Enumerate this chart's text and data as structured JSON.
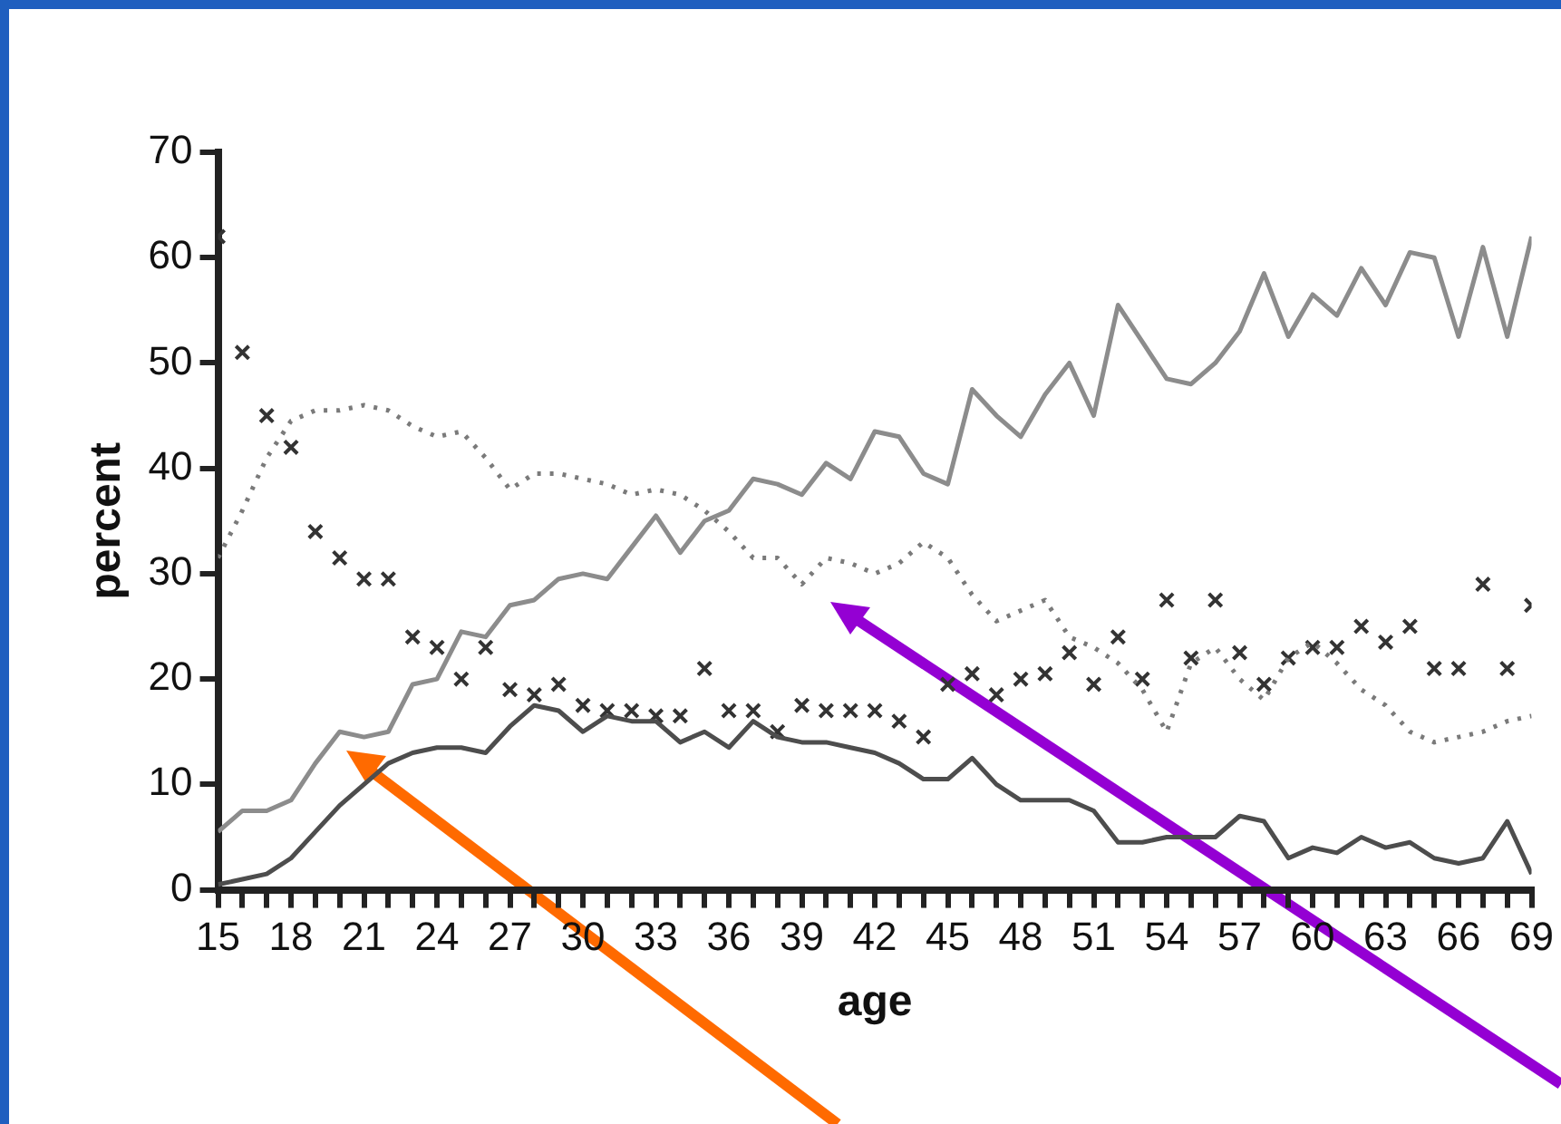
{
  "chart_data": {
    "type": "line",
    "xlabel": "age",
    "ylabel": "percent",
    "x": [
      15,
      16,
      17,
      18,
      19,
      20,
      21,
      22,
      23,
      24,
      25,
      26,
      27,
      28,
      29,
      30,
      31,
      32,
      33,
      34,
      35,
      36,
      37,
      38,
      39,
      40,
      41,
      42,
      43,
      44,
      45,
      46,
      47,
      48,
      49,
      50,
      51,
      52,
      53,
      54,
      55,
      56,
      57,
      58,
      59,
      60,
      61,
      62,
      63,
      64,
      65,
      66,
      67,
      68,
      69
    ],
    "series": [
      {
        "type": "line",
        "color": "#8c8c8c",
        "line_style": "solid",
        "marker": "none",
        "values": [
          5.5,
          7.5,
          7.5,
          8.5,
          12,
          15,
          14.5,
          15,
          19.5,
          20,
          24.5,
          24,
          27,
          27.5,
          29.5,
          30,
          29.5,
          32.5,
          35.5,
          32,
          35,
          36,
          39,
          38.5,
          37.5,
          40.5,
          39,
          43.5,
          43,
          39.5,
          38.5,
          47.5,
          45,
          43,
          47,
          50,
          45,
          55.5,
          52,
          48.5,
          48,
          50,
          53,
          58.5,
          52.5,
          56.5,
          54.5,
          59,
          55.5,
          60.5,
          60,
          52.5,
          61,
          52.5,
          62
        ]
      },
      {
        "type": "line",
        "color": "#4d4d4d",
        "line_style": "solid",
        "marker": "none",
        "values": [
          0.5,
          1,
          1.5,
          3,
          5.5,
          8,
          10,
          12,
          13,
          13.5,
          13.5,
          13,
          15.5,
          17.5,
          17,
          15,
          16.5,
          16,
          16,
          14,
          15,
          13.5,
          16,
          14.5,
          14,
          14,
          13.5,
          13,
          12,
          10.5,
          10.5,
          12.5,
          10,
          8.5,
          8.5,
          8.5,
          7.5,
          4.5,
          4.5,
          5,
          5,
          5,
          7,
          6.5,
          3,
          4,
          3.5,
          5,
          4,
          4.5,
          3,
          2.5,
          3,
          6.5,
          1.5
        ]
      },
      {
        "type": "line",
        "color": "#7a7a7a",
        "line_style": "dotted",
        "marker": "none",
        "values": [
          31.5,
          36,
          41,
          44.5,
          45.5,
          45.5,
          46,
          45.5,
          44,
          43,
          43.5,
          41,
          38,
          39.5,
          39.5,
          39,
          38.5,
          37.5,
          38,
          37.5,
          36,
          34,
          31.5,
          31.5,
          29,
          31.5,
          31,
          30,
          31,
          33,
          31.5,
          28,
          25.5,
          26.5,
          27.5,
          24,
          23,
          21.5,
          19,
          15,
          21.5,
          23,
          20,
          18,
          22,
          23.5,
          21.5,
          19,
          17.5,
          15,
          14,
          14.5,
          15,
          16,
          16.5
        ]
      },
      {
        "type": "scatter",
        "color": "#333333",
        "marker": "cross",
        "values": [
          62,
          51,
          45,
          42,
          34,
          31.5,
          29.5,
          29.5,
          24,
          23,
          20,
          23,
          19,
          18.5,
          19.5,
          17.5,
          17,
          17,
          16.5,
          16.5,
          21,
          17,
          17,
          15,
          17.5,
          17,
          17,
          17,
          16,
          14.5,
          19.5,
          20.5,
          18.5,
          20,
          20.5,
          22.5,
          19.5,
          24,
          20,
          27.5,
          22,
          27.5,
          22.5,
          19.5,
          22,
          23,
          23,
          25,
          23.5,
          25,
          21,
          21,
          29,
          21,
          27
        ]
      }
    ],
    "xlim": [
      15,
      69
    ],
    "xticks": [
      15,
      {
        "value": 16,
        "label": null
      },
      {
        "value": 17,
        "label": null
      },
      18,
      {
        "value": 19,
        "label": null
      },
      {
        "value": 20,
        "label": null
      },
      21,
      {
        "value": 22,
        "label": null
      },
      {
        "value": 23,
        "label": null
      },
      24,
      {
        "value": 25,
        "label": null
      },
      {
        "value": 26,
        "label": null
      },
      27,
      {
        "value": 28,
        "label": null
      },
      {
        "value": 29,
        "label": null
      },
      30,
      {
        "value": 31,
        "label": null
      },
      {
        "value": 32,
        "label": null
      },
      33,
      {
        "value": 34,
        "label": null
      },
      {
        "value": 35,
        "label": null
      },
      36,
      {
        "value": 37,
        "label": null
      },
      {
        "value": 38,
        "label": null
      },
      39,
      {
        "value": 40,
        "label": null
      },
      {
        "value": 41,
        "label": null
      },
      42,
      {
        "value": 43,
        "label": null
      },
      {
        "value": 44,
        "label": null
      },
      45,
      {
        "value": 46,
        "label": null
      },
      {
        "value": 47,
        "label": null
      },
      48,
      {
        "value": 49,
        "label": null
      },
      {
        "value": 50,
        "label": null
      },
      51,
      {
        "value": 52,
        "label": null
      },
      {
        "value": 53,
        "label": null
      },
      54,
      {
        "value": 55,
        "label": null
      },
      {
        "value": 56,
        "label": null
      },
      57,
      {
        "value": 58,
        "label": null
      },
      {
        "value": 59,
        "label": null
      },
      60,
      {
        "value": 61,
        "label": null
      },
      {
        "value": 62,
        "label": null
      },
      63,
      {
        "value": 64,
        "label": null
      },
      {
        "value": 65,
        "label": null
      },
      66,
      {
        "value": 67,
        "label": null
      },
      {
        "value": 68,
        "label": null
      },
      69
    ],
    "ylim": [
      0,
      70
    ],
    "yticks": [
      0,
      10,
      20,
      30,
      40,
      50,
      60,
      70
    ],
    "grid": false,
    "legend": false
  }
}
